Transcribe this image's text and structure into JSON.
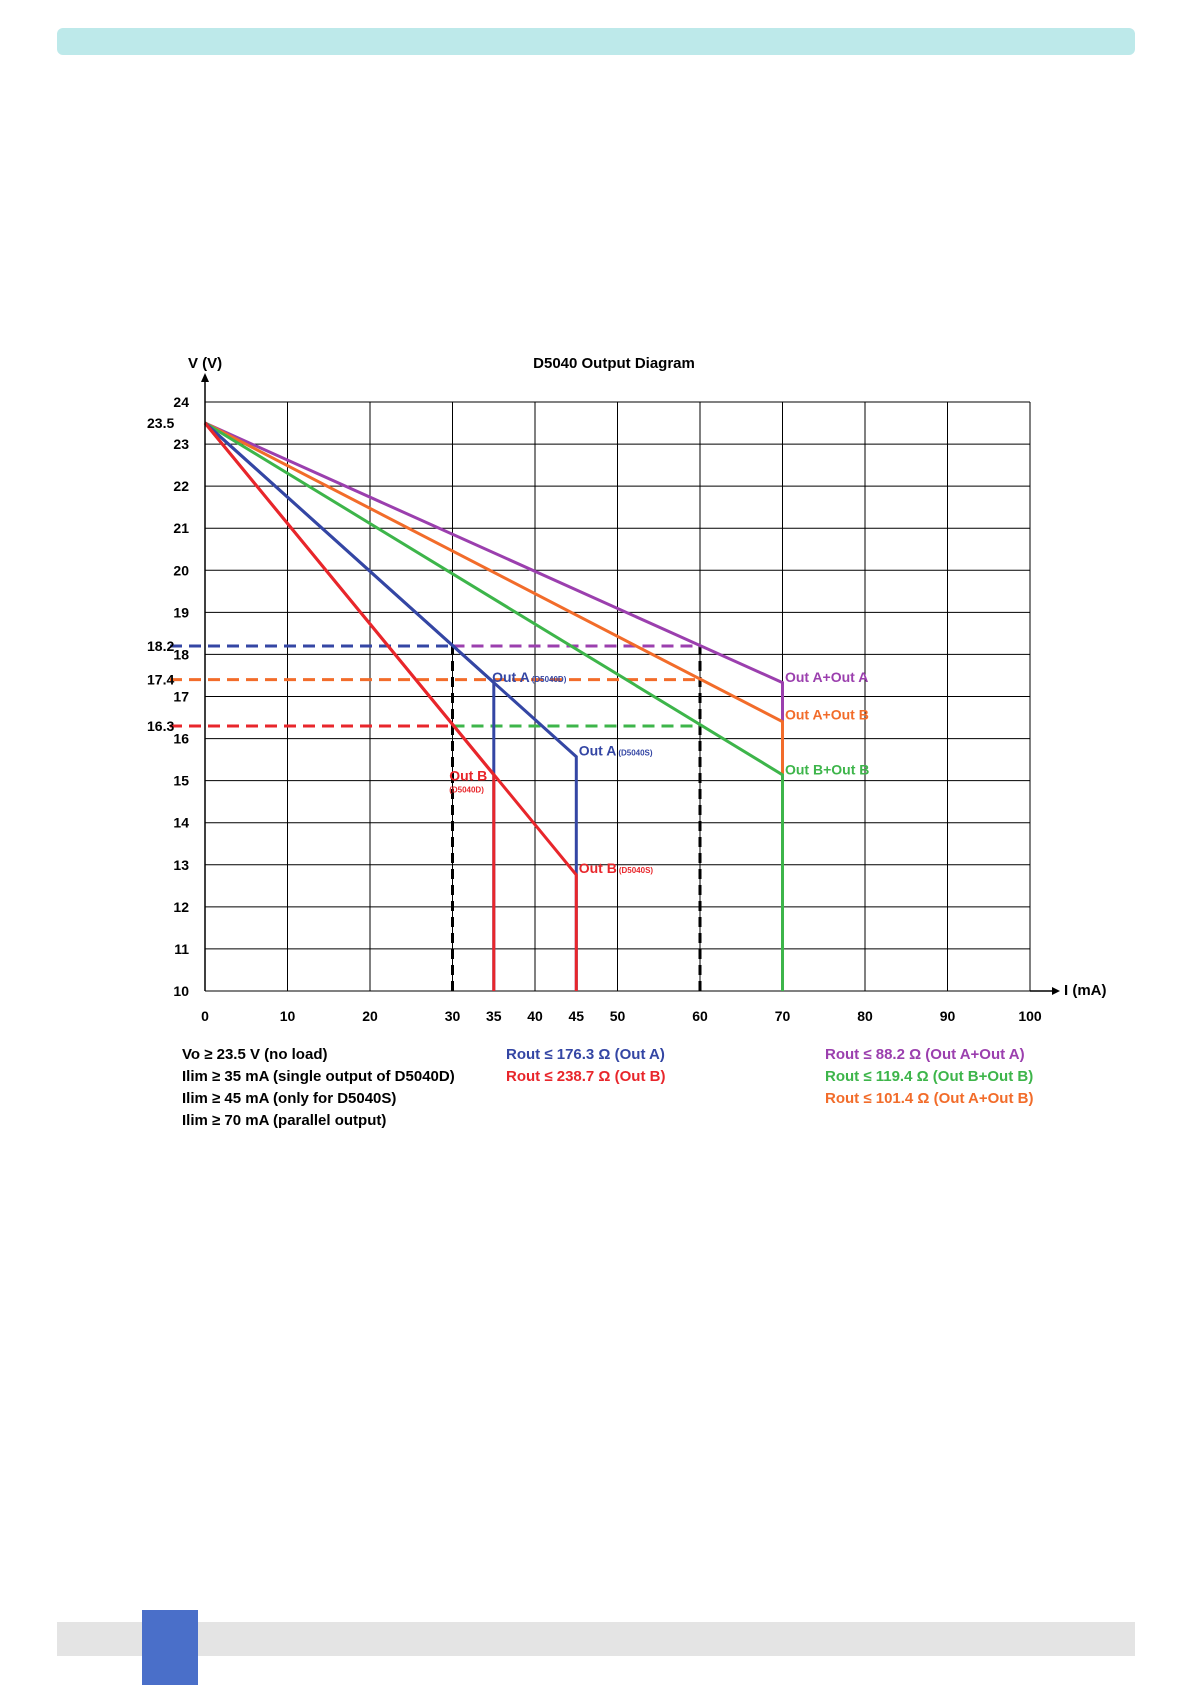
{
  "page": {
    "colors": {
      "header_band": "#bde9ea",
      "footer_band": "#e4e4e4",
      "page_tab": "#4a6fc9"
    }
  },
  "chart_data": {
    "type": "line",
    "title": "D5040 Output Diagram",
    "xlabel": "I (mA)",
    "ylabel": "V (V)",
    "xlim": [
      0,
      100
    ],
    "ylim": [
      10,
      24
    ],
    "x_ticks": [
      0,
      10,
      20,
      30,
      35,
      40,
      45,
      50,
      60,
      70,
      80,
      90,
      100
    ],
    "y_ticks": [
      10,
      11,
      12,
      13,
      14,
      15,
      16,
      17,
      18,
      19,
      20,
      21,
      22,
      23,
      24
    ],
    "grid_x": [
      0,
      10,
      20,
      30,
      40,
      50,
      60,
      70,
      80,
      90,
      100
    ],
    "grid_y": [
      10,
      11,
      12,
      13,
      14,
      15,
      16,
      17,
      18,
      19,
      20,
      21,
      22,
      23,
      24
    ],
    "grid": true,
    "series": [
      {
        "name": "Out A+Out A",
        "color": "#9b3fae",
        "points": [
          [
            0,
            23.5
          ],
          [
            70,
            17.33
          ],
          [
            70,
            10
          ]
        ]
      },
      {
        "name": "Out A+Out B",
        "color": "#f26c2a",
        "points": [
          [
            0,
            23.5
          ],
          [
            70,
            16.4
          ],
          [
            70,
            10
          ]
        ]
      },
      {
        "name": "Out B+Out B",
        "color": "#3db54a",
        "points": [
          [
            0,
            23.5
          ],
          [
            70,
            15.14
          ],
          [
            70,
            10
          ]
        ]
      },
      {
        "name": "Out A (D5040D)",
        "color": "#3446a4",
        "points": [
          [
            0,
            23.5
          ],
          [
            35,
            17.33
          ],
          [
            35,
            10
          ]
        ]
      },
      {
        "name": "Out A (D5040S)",
        "color": "#3446a4",
        "points": [
          [
            0,
            23.5
          ],
          [
            45,
            15.57
          ],
          [
            45,
            10
          ]
        ]
      },
      {
        "name": "Out B (D5040D)",
        "color": "#e8262b",
        "points": [
          [
            0,
            23.5
          ],
          [
            35,
            15.14
          ],
          [
            35,
            10
          ]
        ]
      },
      {
        "name": "Out B (D5040S)",
        "color": "#e8262b",
        "points": [
          [
            0,
            23.5
          ],
          [
            45,
            12.76
          ],
          [
            45,
            10
          ]
        ]
      }
    ],
    "reference_lines": {
      "horizontal": [
        {
          "y": 18.2,
          "x_to": 60,
          "colors": [
            "#3446a4",
            "#9b3fae"
          ],
          "dashed": true
        },
        {
          "y": 17.4,
          "x_to": 60,
          "colors": [
            "#f26c2a"
          ],
          "dashed": true
        },
        {
          "y": 16.3,
          "x_to": 60,
          "colors": [
            "#e8262b",
            "#3db54a"
          ],
          "dashed": true
        }
      ],
      "vertical": [
        {
          "x": 30,
          "color": "#000000",
          "dashed": true
        },
        {
          "x": 60,
          "color": "#000000",
          "dashed": true
        }
      ]
    },
    "special_y_labels": [
      {
        "y": 23.5,
        "text": "23.5"
      },
      {
        "y": 18.2,
        "text": "18.2"
      },
      {
        "y": 17.4,
        "text": "17.4"
      },
      {
        "y": 16.3,
        "text": "16.3"
      }
    ],
    "curve_labels": [
      {
        "text": "Out A",
        "sub": "(D5040D)",
        "color": "#3446a4",
        "x": 34.8,
        "y": 17.35,
        "size": 14,
        "sub_size": 8
      },
      {
        "text": "Out A",
        "sub": "(D5040S)",
        "color": "#3446a4",
        "x": 45.3,
        "y": 15.6,
        "size": 14,
        "sub_size": 8
      },
      {
        "text": "Out B",
        "sub": "(D5040D)",
        "color": "#e8262b",
        "x": 29.6,
        "y": 15.0,
        "size": 14,
        "sub_size": 8,
        "sub_below": true
      },
      {
        "text": "Out B",
        "sub": "(D5040S)",
        "color": "#e8262b",
        "x": 45.3,
        "y": 12.8,
        "size": 14,
        "sub_size": 8
      },
      {
        "text": "Out A+Out A",
        "color": "#9b3fae",
        "x": 70.3,
        "y": 17.35,
        "size": 14
      },
      {
        "text": "Out A+Out B",
        "color": "#f26c2a",
        "x": 70.3,
        "y": 16.45,
        "size": 14
      },
      {
        "text": "Out B+Out B",
        "color": "#3db54a",
        "x": 70.3,
        "y": 15.15,
        "size": 14
      }
    ],
    "notes": [
      {
        "text": "Vo ≥ 23.5 V (no load)",
        "color": "#000000",
        "col": 0,
        "row": 0
      },
      {
        "text": "Ilim ≥ 35 mA (single output of D5040D)",
        "color": "#000000",
        "col": 0,
        "row": 1
      },
      {
        "text": "Ilim ≥ 45 mA (only for D5040S)",
        "color": "#000000",
        "col": 0,
        "row": 2
      },
      {
        "text": "Ilim ≥ 70 mA (parallel output)",
        "color": "#000000",
        "col": 0,
        "row": 3
      },
      {
        "text": "Rout ≤ 176.3 Ω (Out A)",
        "color": "#3446a4",
        "col": 1,
        "row": 0
      },
      {
        "text": "Rout ≤ 238.7 Ω (Out B)",
        "color": "#e8262b",
        "col": 1,
        "row": 1
      },
      {
        "text": "Rout ≤ 88.2 Ω (Out A+Out A)",
        "color": "#9b3fae",
        "col": 2,
        "row": 0
      },
      {
        "text": "Rout ≤ 119.4 Ω (Out B+Out B)",
        "color": "#3db54a",
        "col": 2,
        "row": 1
      },
      {
        "text": "Rout ≤ 101.4 Ω (Out A+Out B)",
        "color": "#f26c2a",
        "col": 2,
        "row": 2
      }
    ]
  }
}
